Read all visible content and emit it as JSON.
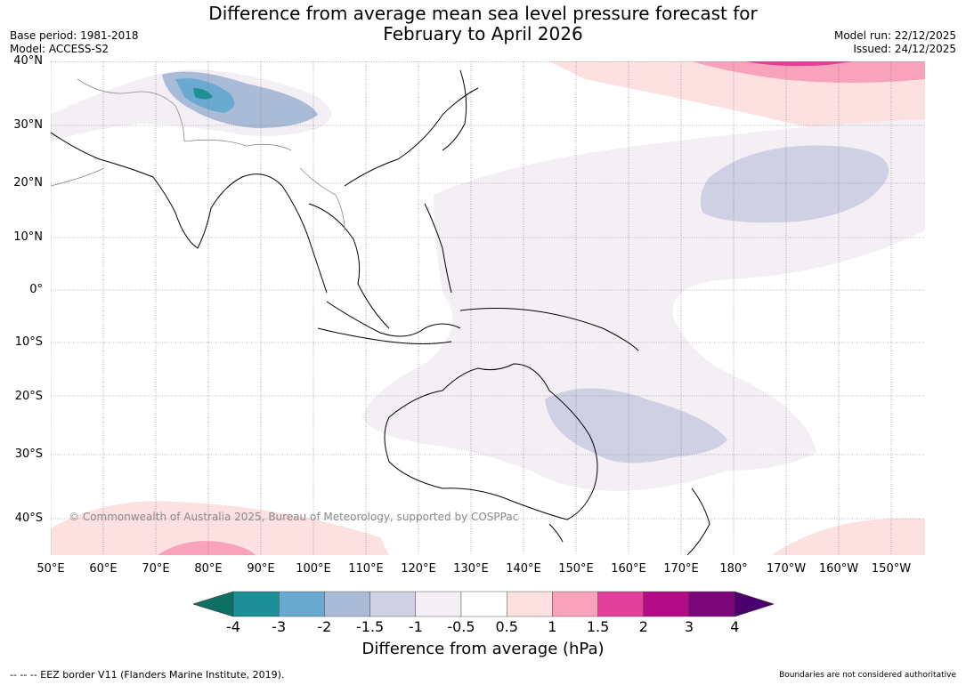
{
  "title_line1": "Difference from average mean sea level pressure forecast for",
  "title_line2": "February to April 2026",
  "base_period": "Base period: 1981-2018",
  "model": "Model: ACCESS-S2",
  "model_run": "Model run: 22/12/2025",
  "issued": "Issued: 24/12/2025",
  "copyright": "© Commonwealth of Australia 2025, Bureau of Meteorology, supported by COSPPac",
  "lat_ticks": [
    "40°N",
    "30°N",
    "20°N",
    "10°N",
    "0°",
    "10°S",
    "20°S",
    "30°S",
    "40°S"
  ],
  "lon_ticks": [
    "50°E",
    "60°E",
    "70°E",
    "80°E",
    "90°E",
    "100°E",
    "110°E",
    "120°E",
    "130°E",
    "140°E",
    "150°E",
    "160°E",
    "170°E",
    "180°",
    "170°W",
    "160°W",
    "150°W"
  ],
  "colorbar": {
    "label": "Difference from average (hPa)",
    "ticks": [
      "-4",
      "-3",
      "-2",
      "-1.5",
      "-1",
      "-0.5",
      "0.5",
      "1",
      "1.5",
      "2",
      "3",
      "4"
    ],
    "colors": [
      "#0e7062",
      "#1d8f97",
      "#6aaad1",
      "#a9bbd6",
      "#cfd0e4",
      "#f3eff5",
      "#ffffff",
      "#fde0e0",
      "#f8a2bb",
      "#e0409a",
      "#b30a86",
      "#7a067a",
      "#4b006e"
    ]
  },
  "footer_left": "--  --  -- EEZ border V11 (Flanders Marine Institute, 2019).",
  "footer_right": "Boundaries are not considered authoritative"
}
